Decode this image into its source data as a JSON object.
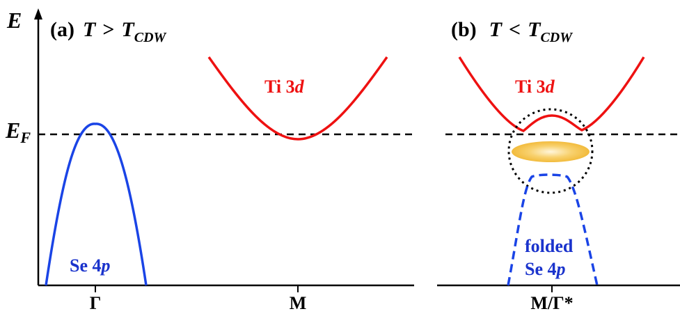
{
  "axis": {
    "y_label": "E",
    "fermi_main": "E",
    "fermi_sub": "F"
  },
  "panel_a": {
    "tag": "(a)",
    "T": "T",
    "rel": ">",
    "Tc": "T",
    "Tc_sub": "CDW",
    "ti_label": "Ti 3",
    "ti_d": "d",
    "se_label": "Se 4",
    "se_p": "p",
    "tick_gamma": "Γ",
    "tick_m": "M"
  },
  "panel_b": {
    "tag": "(b)",
    "T": "T",
    "rel": "<",
    "Tc": "T",
    "Tc_sub": "CDW",
    "ti_label": "Ti 3",
    "ti_d": "d",
    "folded_line1": "folded",
    "folded_line2": "Se 4",
    "folded_p": "p",
    "tick": "M/Γ*"
  },
  "colors": {
    "ti_band": "#ee1111",
    "se_band": "#1a44e6",
    "label_red": "#ee1111",
    "label_blue": "#1a33cc",
    "gap_glow": "#f5c24a"
  }
}
